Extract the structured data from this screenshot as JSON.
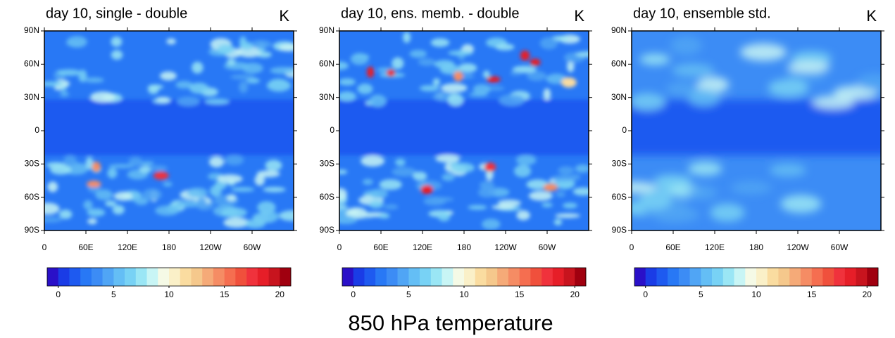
{
  "caption": "850 hPa temperature",
  "panels": [
    {
      "title": "day 10, single - double",
      "unit": "K"
    },
    {
      "title": "day 10, ens. memb. - double",
      "unit": "K"
    },
    {
      "title": "day 10, ensemble std.",
      "unit": "K"
    }
  ],
  "xlim": [
    0,
    360
  ],
  "xticks": [
    0,
    {
      "value": 60,
      "label": "60E"
    },
    {
      "value": 120,
      "label": "120E"
    },
    180,
    {
      "value": 240,
      "label": "120W"
    },
    {
      "value": 300,
      "label": "60W"
    }
  ],
  "ylim": [
    -90,
    90
  ],
  "yticks": [
    {
      "value": 90,
      "label": "90N"
    },
    {
      "value": 60,
      "label": "60N"
    },
    {
      "value": 30,
      "label": "30N"
    },
    0,
    {
      "value": -30,
      "label": "30S"
    },
    {
      "value": -60,
      "label": "60S"
    },
    {
      "value": -90,
      "label": "90S"
    }
  ],
  "colorbar": {
    "lim": [
      -1,
      21
    ],
    "ticks": [
      0,
      5,
      10,
      15,
      20
    ],
    "colors": [
      "#2a10c8",
      "#1a3ce6",
      "#1e5af0",
      "#2878f5",
      "#3c8cf5",
      "#50a5f5",
      "#64bef5",
      "#78d2f5",
      "#9ae6f5",
      "#c8f5f5",
      "#f5fae6",
      "#faf0c8",
      "#fadca0",
      "#f5c88c",
      "#f5aa78",
      "#f58c64",
      "#f56e50",
      "#f0503c",
      "#f0323c",
      "#e61e28",
      "#c8141e",
      "#a0000f"
    ]
  }
}
